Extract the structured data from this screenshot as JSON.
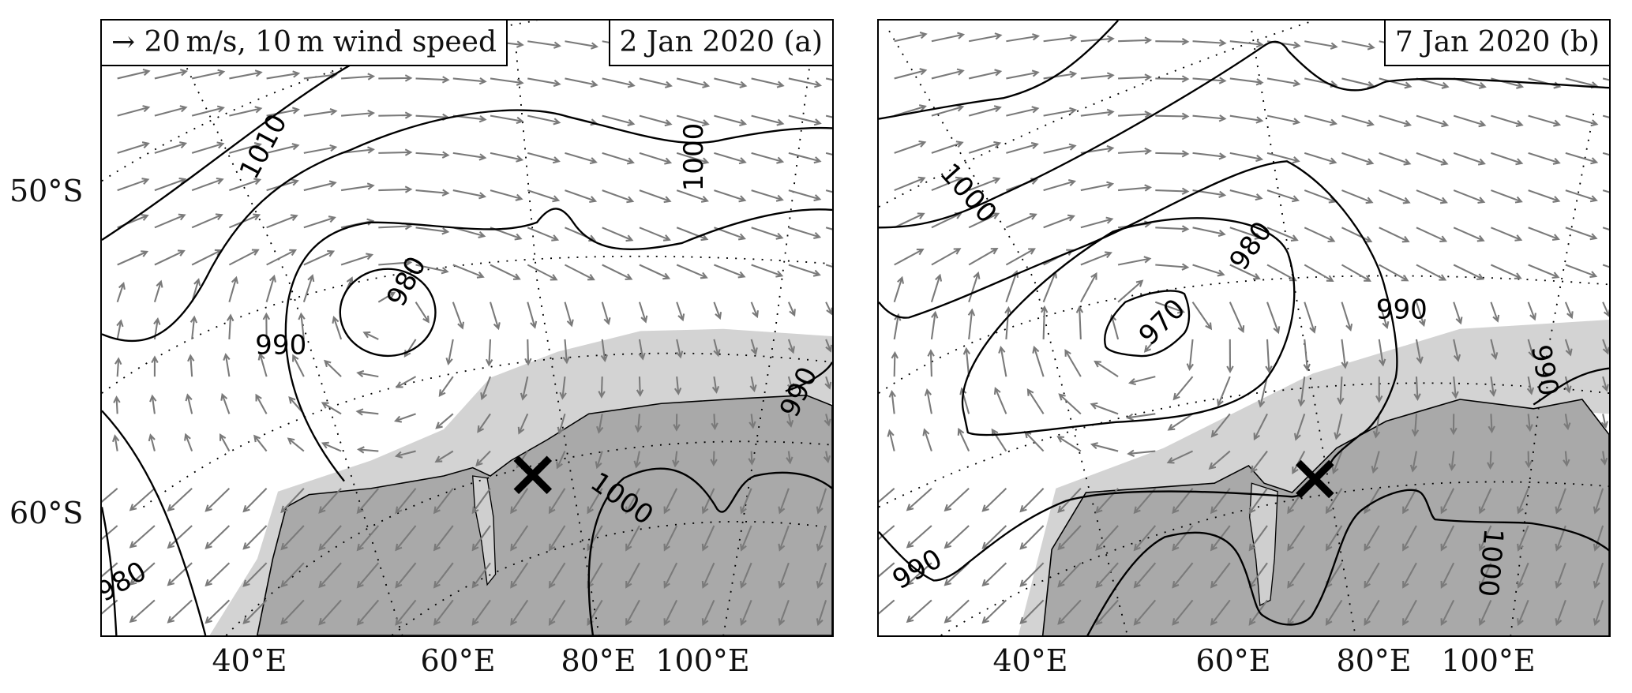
{
  "panels": [
    {
      "id": "a",
      "title": "2 Jan 2020 (a)",
      "legend": "→ 20 m/s, 10 m wind speed",
      "contour_labels": [
        "1010",
        "1000",
        "980",
        "990",
        "990",
        "1000",
        "980"
      ]
    },
    {
      "id": "b",
      "title": "7 Jan 2020 (b)",
      "contour_labels": [
        "1000",
        "980",
        "970",
        "990",
        "990",
        "990",
        "1000"
      ]
    }
  ],
  "axes": {
    "lat_labels": [
      "50°S",
      "60°S"
    ],
    "lon_labels": [
      "40°E",
      "60°E",
      "80°E",
      "100°E"
    ]
  },
  "colors": {
    "land": "#a9a9a9",
    "sea_ice": "#d3d3d3",
    "ice_shelf": "#cfcfcf",
    "wind_arrow": "#7a7a7a",
    "contour": "#000000"
  },
  "marker": {
    "icon": "x-mark-icon"
  }
}
